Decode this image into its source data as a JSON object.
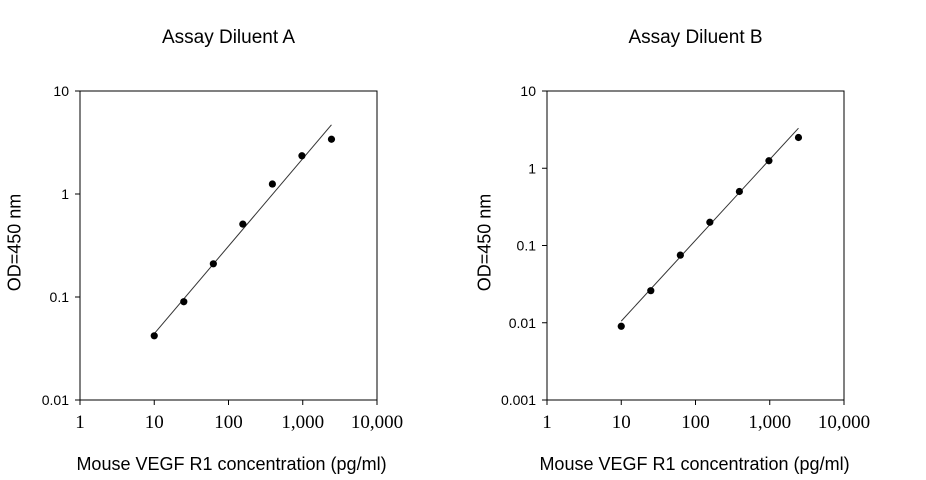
{
  "chart_data": [
    {
      "type": "scatter",
      "title": "Assay Diluent A",
      "xlabel": "Mouse VEGF R1 concentration (pg/ml)",
      "ylabel": "OD=450 nm",
      "x_scale": "log",
      "y_scale": "log",
      "xlim": [
        1,
        10000
      ],
      "ylim": [
        0.01,
        10
      ],
      "x_ticks": [
        "1",
        "10",
        "100",
        "1,000",
        "10,000"
      ],
      "y_ticks": [
        "0.01",
        "0.1",
        "1",
        "10"
      ],
      "grid": false,
      "series": [
        {
          "x": [
            10,
            25,
            62.5,
            156,
            390,
            975,
            2437
          ],
          "y": [
            0.042,
            0.09,
            0.21,
            0.51,
            1.25,
            2.35,
            3.4
          ]
        }
      ],
      "trendline": {
        "x": [
          10,
          2437
        ],
        "y": [
          0.044,
          4.7
        ]
      }
    },
    {
      "type": "scatter",
      "title": "Assay Diluent B",
      "xlabel": "Mouse VEGF R1 concentration (pg/ml)",
      "ylabel": "OD=450 nm",
      "x_scale": "log",
      "y_scale": "log",
      "xlim": [
        1,
        10000
      ],
      "ylim": [
        0.001,
        10
      ],
      "x_ticks": [
        "1",
        "10",
        "100",
        "1,000",
        "10,000"
      ],
      "y_ticks": [
        "0.001",
        "0.01",
        "0.1",
        "1",
        "10"
      ],
      "grid": false,
      "series": [
        {
          "x": [
            10,
            25,
            62.5,
            156,
            390,
            975,
            2437
          ],
          "y": [
            0.009,
            0.026,
            0.075,
            0.2,
            0.5,
            1.25,
            2.5
          ]
        }
      ],
      "trendline": {
        "x": [
          10,
          2437
        ],
        "y": [
          0.0105,
          3.3
        ]
      }
    }
  ]
}
